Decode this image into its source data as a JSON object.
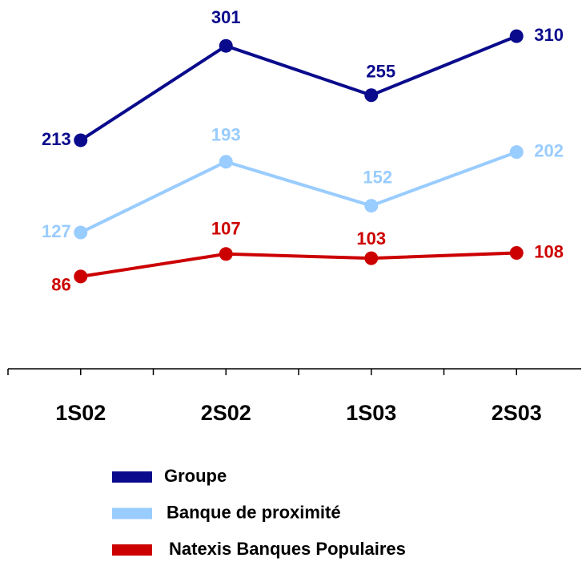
{
  "chart_data": {
    "type": "line",
    "categories": [
      "1S02",
      "2S02",
      "1S03",
      "2S03"
    ],
    "series": [
      {
        "name": "Groupe",
        "color": "#0a0a8c",
        "values": [
          213,
          301,
          255,
          310
        ]
      },
      {
        "name": "Banque de proximité",
        "color": "#99ccff",
        "values": [
          127,
          193,
          152,
          202
        ]
      },
      {
        "name": "Natexis Banques Populaires",
        "color": "#cc0000",
        "values": [
          86,
          107,
          103,
          108
        ]
      }
    ],
    "ylim": [
      0,
      340
    ]
  }
}
